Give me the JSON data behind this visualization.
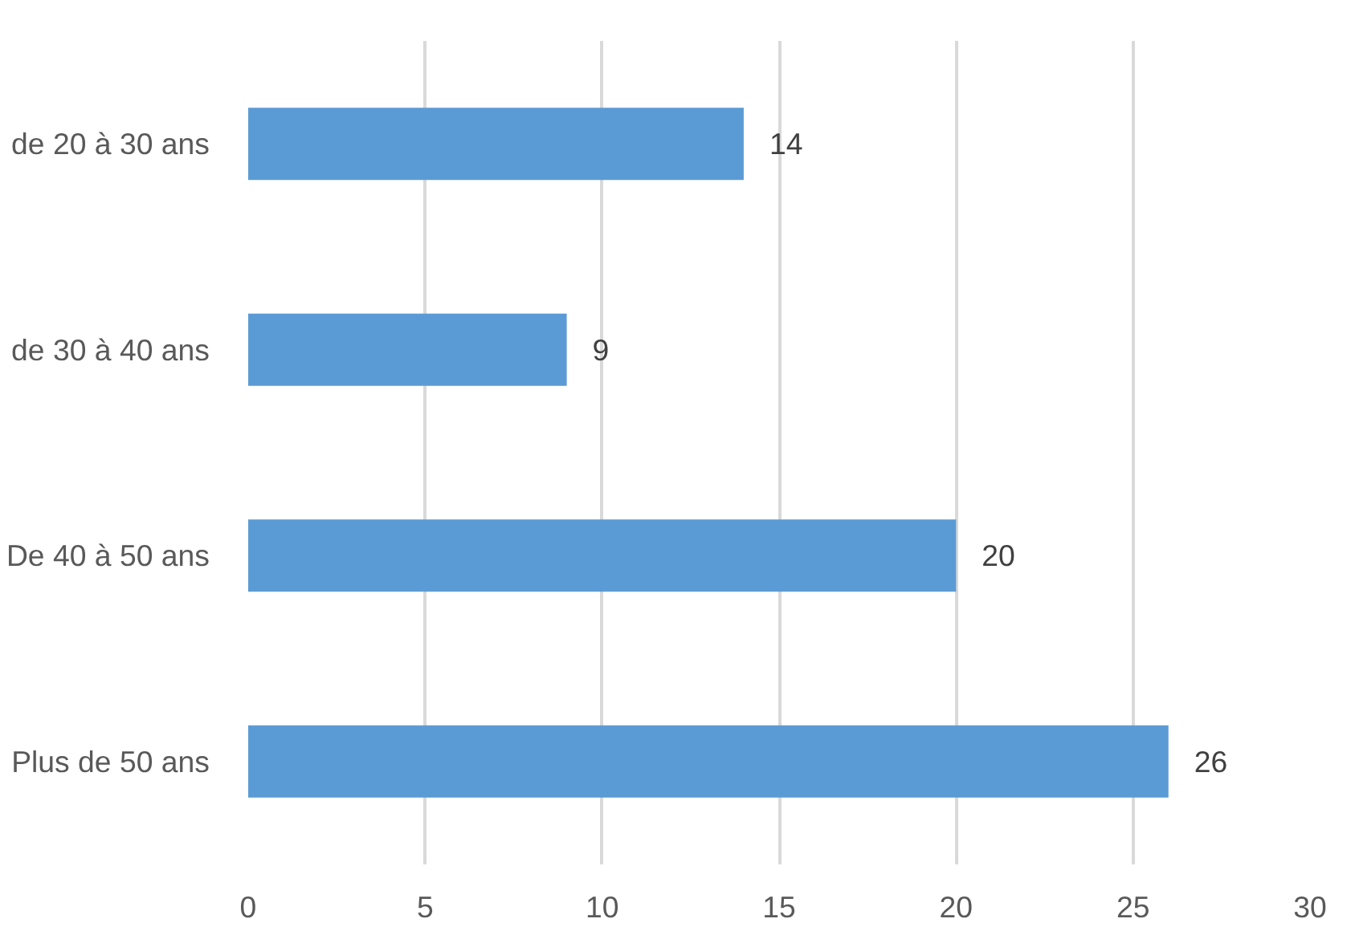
{
  "chart_data": {
    "type": "bar",
    "orientation": "horizontal",
    "categories": [
      "de 20 à 30 ans",
      "de 30 à 40 ans",
      "De 40 à 50 ans",
      "Plus de 50 ans"
    ],
    "values": [
      14,
      9,
      20,
      26
    ],
    "color": "#5b9bd5",
    "xlim": [
      0,
      30
    ],
    "xticks": [
      0,
      5,
      10,
      15,
      20,
      25,
      30
    ],
    "grid": "x",
    "data_labels": true
  }
}
